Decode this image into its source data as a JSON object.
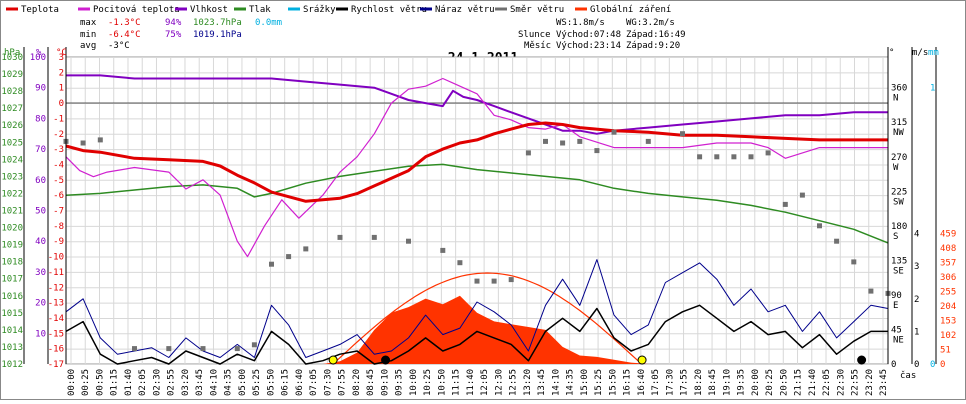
{
  "legend": [
    {
      "label": "Teplota",
      "color": "#e00000"
    },
    {
      "label": "Pocitová teplota",
      "color": "#d020d0"
    },
    {
      "label": "Vlhkost",
      "color": "#8000c0"
    },
    {
      "label": "Tlak",
      "color": "#2e8b22"
    },
    {
      "label": "Srážky",
      "color": "#00b0e0"
    },
    {
      "label": "Rychlost větru",
      "color": "#000000"
    },
    {
      "label": "Náraz větru",
      "color": "#00008b"
    },
    {
      "label": "Směr větru",
      "color": "#707070"
    },
    {
      "label": "Globální záření",
      "color": "#ff3300"
    }
  ],
  "stats": {
    "max": {
      "label": "max",
      "temp": "-1.3°C",
      "hum": "94%",
      "press": "1023.7hPa",
      "rain": "0.0mm"
    },
    "min": {
      "label": "min",
      "temp": "-6.4°C",
      "hum": "75%",
      "press": "1019.1hPa"
    },
    "avg": {
      "label": "avg",
      "temp": "-3°C"
    },
    "ws": "WS:1.8m/s",
    "wg": "WG:3.2m/s",
    "sun_label": "Slunce",
    "sun_rise": "Východ:07:48",
    "sun_set": "Západ:16:49",
    "moon_label": "Měsíc",
    "moon_rise": "Východ:23:14",
    "moon_set": "Západ:9:20"
  },
  "chart_data": {
    "type": "line",
    "title": "24.1.2011",
    "xlabel": "čas",
    "axis_units": {
      "press": "hPa",
      "hum": "%",
      "temp": "°C",
      "dir": "°",
      "wind": "m/s",
      "rain": "mm",
      "solar": ""
    },
    "axes": {
      "press": {
        "ticks": [
          1012,
          1013,
          1014,
          1015,
          1016,
          1017,
          1018,
          1019,
          1020,
          1021,
          1022,
          1023,
          1024,
          1025,
          1026,
          1027,
          1028,
          1029,
          1030
        ],
        "color": "#2e8b22"
      },
      "hum": {
        "ticks": [
          10,
          20,
          30,
          40,
          50,
          60,
          70,
          80,
          90,
          100
        ],
        "color": "#8000c0"
      },
      "temp": {
        "ylim": [
          -17,
          3
        ],
        "ticks": [
          3,
          2,
          1,
          0,
          -1,
          -2,
          -3,
          -4,
          -5,
          -6,
          -7,
          -8,
          -9,
          -10,
          -11,
          -12,
          -13,
          -14,
          -15,
          -16,
          -17
        ],
        "color": "#e00000"
      },
      "dir": {
        "ticks": [
          "0",
          "45",
          "90",
          "135",
          "180",
          "225",
          "270",
          "315",
          "360"
        ],
        "compass": [
          "",
          "NE",
          "E",
          "SE",
          "S",
          "SW",
          "W",
          "NW",
          "N"
        ],
        "color": "#000000"
      },
      "wind": {
        "ticks": [
          0,
          1,
          2,
          3,
          4
        ],
        "color": "#000000"
      },
      "rain": {
        "ticks": [
          0,
          1
        ],
        "color": "#00b0e0"
      },
      "solar": {
        "ticks": [
          0,
          51,
          102,
          153,
          204,
          255,
          306,
          357,
          408,
          459
        ],
        "color": "#ff3300"
      }
    },
    "x_ticks": [
      "00:00",
      "00:25",
      "00:50",
      "01:15",
      "01:40",
      "02:05",
      "02:30",
      "02:55",
      "03:20",
      "03:45",
      "04:10",
      "04:35",
      "05:00",
      "05:25",
      "05:50",
      "06:15",
      "06:40",
      "07:05",
      "07:30",
      "07:55",
      "08:20",
      "08:45",
      "09:10",
      "09:35",
      "10:00",
      "10:25",
      "10:50",
      "11:15",
      "11:40",
      "12:05",
      "12:30",
      "12:55",
      "13:20",
      "13:45",
      "14:10",
      "14:35",
      "15:00",
      "15:25",
      "15:50",
      "16:15",
      "16:40",
      "17:05",
      "17:30",
      "17:55",
      "18:20",
      "18:45",
      "19:10",
      "19:35",
      "20:00",
      "20:25",
      "20:50",
      "21:15",
      "21:40",
      "22:05",
      "22:30",
      "22:55",
      "23:20",
      "23:45"
    ],
    "series": [
      {
        "name": "Teplota",
        "color": "#e00000",
        "hours": [
          0,
          0.5,
          1,
          2,
          3,
          4,
          4.5,
          5,
          5.5,
          6,
          6.5,
          7,
          8,
          8.5,
          9,
          9.5,
          10,
          10.5,
          11,
          11.5,
          12,
          12.5,
          13,
          13.5,
          14,
          14.5,
          15,
          16,
          17,
          18,
          19,
          20,
          21,
          22,
          23,
          24
        ],
        "values": [
          -2.8,
          -3.1,
          -3.2,
          -3.6,
          -3.7,
          -3.8,
          -4.1,
          -4.7,
          -5.2,
          -5.8,
          -6.1,
          -6.4,
          -6.2,
          -5.9,
          -5.4,
          -4.9,
          -4.4,
          -3.5,
          -3.0,
          -2.6,
          -2.4,
          -2.0,
          -1.7,
          -1.4,
          -1.3,
          -1.4,
          -1.6,
          -1.8,
          -1.9,
          -2.1,
          -2.1,
          -2.2,
          -2.3,
          -2.4,
          -2.4,
          -2.4
        ]
      },
      {
        "name": "Pocitová teplota",
        "color": "#d020d0",
        "hours": [
          0,
          0.4,
          0.8,
          1.2,
          2,
          3,
          3.5,
          4,
          4.5,
          5,
          5.3,
          5.8,
          6.3,
          6.8,
          7.5,
          8,
          8.5,
          9,
          9.5,
          10,
          10.5,
          11,
          11.3,
          11.6,
          12,
          12.5,
          13,
          13.5,
          14,
          14.5,
          15,
          16,
          17,
          18,
          19,
          20,
          20.5,
          21,
          22,
          23,
          24
        ],
        "values": [
          -3.5,
          -4.4,
          -4.8,
          -4.5,
          -4.2,
          -4.5,
          -5.6,
          -5.0,
          -6.0,
          -9.0,
          -10.0,
          -8.0,
          -6.3,
          -7.5,
          -6.0,
          -4.5,
          -3.5,
          -2.0,
          0.0,
          0.9,
          1.1,
          1.6,
          1.3,
          1.0,
          0.6,
          -0.8,
          -1.1,
          -1.6,
          -1.7,
          -1.4,
          -2.2,
          -2.9,
          -2.9,
          -2.9,
          -2.6,
          -2.6,
          -2.9,
          -3.6,
          -2.9,
          -2.9,
          -2.9
        ]
      },
      {
        "name": "Vlhkost",
        "color": "#8000c0",
        "hours": [
          0,
          1,
          2,
          3,
          4,
          5,
          6,
          7,
          8,
          9,
          9.5,
          10,
          10.5,
          11,
          11.3,
          11.6,
          12,
          12.5,
          13,
          13.5,
          14,
          14.5,
          15,
          15.5,
          16,
          17,
          18,
          19,
          20,
          21,
          22,
          23,
          24
        ],
        "values": [
          94,
          94,
          93,
          93,
          93,
          93,
          93,
          92,
          91,
          90,
          88,
          86,
          85,
          84,
          89,
          87,
          86,
          84,
          82,
          80,
          78,
          76,
          76,
          75,
          76,
          77,
          78,
          79,
          80,
          81,
          81,
          82,
          82
        ]
      },
      {
        "name": "Tlak",
        "color": "#2e8b22",
        "hours": [
          0,
          1,
          2,
          3,
          4,
          5,
          5.5,
          6,
          7,
          8,
          9,
          10,
          11,
          12,
          13,
          14,
          15,
          16,
          17,
          18,
          19,
          20,
          21,
          22,
          23,
          24
        ],
        "values": [
          1021.9,
          1022.0,
          1022.2,
          1022.4,
          1022.5,
          1022.3,
          1021.8,
          1022.0,
          1022.6,
          1023.0,
          1023.3,
          1023.6,
          1023.7,
          1023.4,
          1023.2,
          1023.0,
          1022.8,
          1022.3,
          1022.0,
          1021.8,
          1021.6,
          1021.3,
          1020.9,
          1020.4,
          1019.9,
          1019.1
        ]
      },
      {
        "name": "Rychlost větru",
        "color": "#000000",
        "hours": [
          0,
          0.5,
          1,
          1.5,
          2,
          2.5,
          3,
          3.5,
          4,
          4.5,
          5,
          5.5,
          6,
          6.5,
          7,
          7.5,
          8,
          8.5,
          9,
          9.5,
          10,
          10.5,
          11,
          11.5,
          12,
          12.5,
          13,
          13.5,
          14,
          14.5,
          15,
          15.5,
          16,
          16.5,
          17,
          17.5,
          18,
          18.5,
          19,
          19.5,
          20,
          20.5,
          21,
          21.5,
          22,
          22.5,
          23,
          23.5,
          24
        ],
        "values": [
          1.0,
          1.3,
          0.3,
          0.0,
          0.1,
          0.2,
          0.0,
          0.4,
          0.2,
          0.0,
          0.3,
          0.1,
          1.0,
          0.6,
          0.0,
          0.1,
          0.3,
          0.4,
          0.0,
          0.1,
          0.4,
          0.8,
          0.4,
          0.6,
          1.0,
          0.8,
          0.6,
          0.1,
          1.0,
          1.4,
          1.0,
          1.7,
          0.8,
          0.4,
          0.6,
          1.3,
          1.6,
          1.8,
          1.4,
          1.0,
          1.3,
          0.9,
          1.0,
          0.5,
          0.9,
          0.3,
          0.7,
          1.0,
          1.0
        ]
      },
      {
        "name": "Náraz větru",
        "color": "#00008b",
        "hours": [
          0,
          0.5,
          1,
          1.5,
          2,
          2.5,
          3,
          3.5,
          4,
          4.5,
          5,
          5.5,
          6,
          6.5,
          7,
          7.5,
          8,
          8.5,
          9,
          9.5,
          10,
          10.5,
          11,
          11.5,
          12,
          12.5,
          13,
          13.5,
          14,
          14.5,
          15,
          15.5,
          16,
          16.5,
          17,
          17.5,
          18,
          18.5,
          19,
          19.5,
          20,
          20.5,
          21,
          21.5,
          22,
          22.5,
          23,
          23.5,
          24
        ],
        "values": [
          1.6,
          2.0,
          0.8,
          0.3,
          0.4,
          0.5,
          0.2,
          0.8,
          0.4,
          0.2,
          0.6,
          0.2,
          1.8,
          1.2,
          0.2,
          0.4,
          0.6,
          0.9,
          0.3,
          0.4,
          0.8,
          1.5,
          0.9,
          1.1,
          1.9,
          1.6,
          1.2,
          0.4,
          1.8,
          2.6,
          1.8,
          3.2,
          1.5,
          0.9,
          1.2,
          2.5,
          2.8,
          3.1,
          2.6,
          1.8,
          2.3,
          1.6,
          1.8,
          1.0,
          1.6,
          0.8,
          1.3,
          1.8,
          1.7
        ]
      },
      {
        "name": "Směr větru",
        "color": "#707070",
        "hours": [
          0,
          0.5,
          1,
          2,
          3,
          4,
          5,
          5.5,
          6,
          6.5,
          7,
          8,
          9,
          10,
          11,
          11.5,
          12,
          12.5,
          13,
          13.5,
          14,
          14.5,
          15,
          15.5,
          16,
          17,
          18,
          18.5,
          19,
          19.5,
          20,
          20.5,
          21,
          21.5,
          22,
          22.5,
          23,
          23.5,
          24
        ],
        "values": [
          290,
          288,
          292,
          20,
          20,
          20,
          20,
          25,
          130,
          140,
          150,
          165,
          165,
          160,
          148,
          132,
          108,
          108,
          110,
          275,
          290,
          288,
          290,
          278,
          302,
          290,
          300,
          270,
          270,
          270,
          270,
          275,
          208,
          220,
          180,
          160,
          133,
          95,
          92
        ]
      },
      {
        "name": "Globální záření",
        "color": "#ff3300",
        "hours": [
          7.5,
          8,
          8.5,
          9,
          9.5,
          10,
          10.5,
          11,
          11.5,
          12,
          12.5,
          13,
          13.5,
          14,
          14.5,
          15,
          15.5,
          16,
          16.5,
          17
        ],
        "values": [
          0,
          10,
          40,
          120,
          180,
          200,
          230,
          210,
          240,
          180,
          150,
          140,
          130,
          120,
          60,
          30,
          25,
          15,
          5,
          0
        ]
      }
    ]
  }
}
